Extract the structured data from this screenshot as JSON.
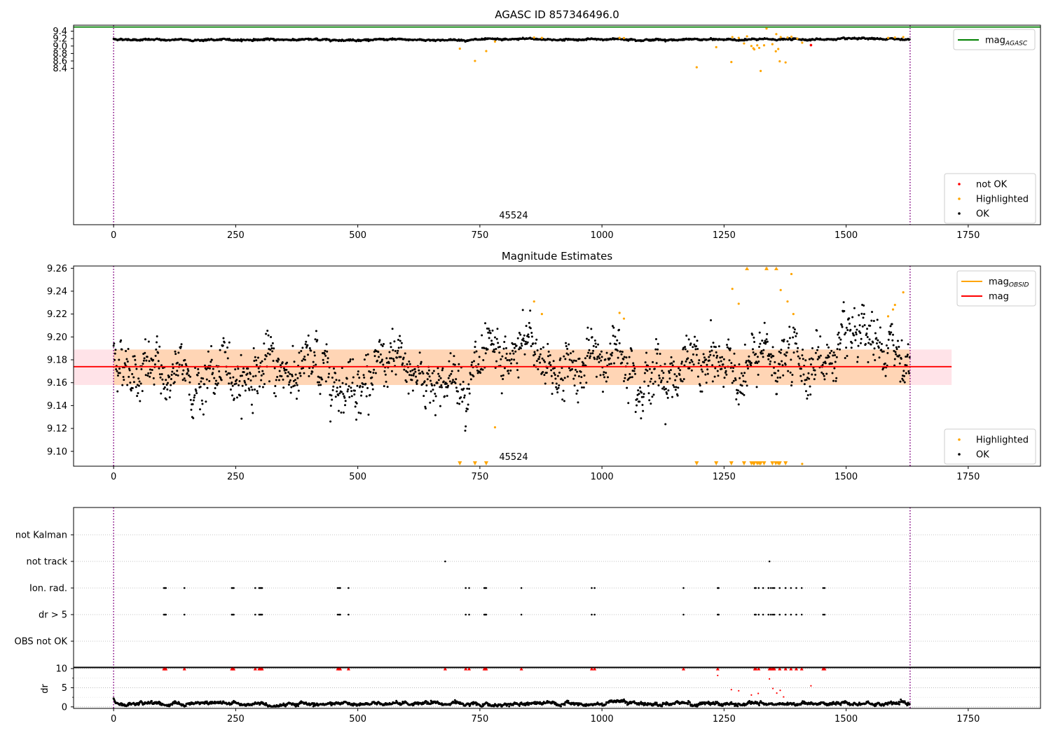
{
  "chart_data": [
    {
      "type": "scatter",
      "title": "AGASC ID 857346496.0",
      "annotation": "45524",
      "xlim": [
        -82,
        1898
      ],
      "ylim": [
        4.2,
        9.56
      ],
      "x_ticks": [
        0,
        250,
        500,
        750,
        1000,
        1250,
        1500,
        1750
      ],
      "y_ticks": [
        8.4,
        8.6,
        8.8,
        9.0,
        9.2,
        9.4
      ],
      "y_tick_labels": [
        "8.4",
        "8.6",
        "8.8",
        "9.0",
        "9.2",
        "9.4"
      ],
      "vlines": [
        0,
        1631
      ],
      "hline": {
        "name": "mag",
        "sub": "AGASC",
        "value": 9.51,
        "color": "#008000"
      },
      "legends": [
        {
          "position": "top-right",
          "entries": [
            {
              "label": "mag",
              "sub": "AGASC",
              "kind": "line",
              "color": "#008000"
            }
          ]
        },
        {
          "position": "bottom-right",
          "entries": [
            {
              "label": "not OK",
              "kind": "dot",
              "color": "#ff0000"
            },
            {
              "label": "Highlighted",
              "kind": "dot",
              "color": "#ffa500"
            },
            {
              "label": "OK",
              "kind": "dot",
              "color": "#000000"
            }
          ]
        }
      ],
      "series": [
        {
          "name": "OK",
          "color": "#000000",
          "n": 1631,
          "baseline_x": [
            0,
            100,
            200,
            300,
            400,
            500,
            600,
            700,
            750,
            800,
            850,
            900,
            1000,
            1050,
            1100,
            1200,
            1300,
            1400,
            1500,
            1631
          ],
          "baseline_y": [
            9.185,
            9.165,
            9.163,
            9.172,
            9.172,
            9.168,
            9.168,
            9.163,
            9.168,
            9.166,
            9.195,
            9.172,
            9.178,
            9.19,
            9.168,
            9.172,
            9.175,
            9.18,
            9.182,
            9.186
          ],
          "noise": 0.013
        },
        {
          "name": "Highlighted",
          "color": "#ffa500",
          "points": [
            [
              709,
              8.93
            ],
            [
              740,
              8.6
            ],
            [
              763,
              8.865
            ],
            [
              781,
              9.12
            ],
            [
              861,
              9.23
            ],
            [
              877,
              9.22
            ],
            [
              1036,
              9.22
            ],
            [
              1045,
              9.215
            ],
            [
              1194,
              8.43
            ],
            [
              1234,
              8.97
            ],
            [
              1265,
              8.57
            ],
            [
              1267,
              9.24
            ],
            [
              1280,
              9.22
            ],
            [
              1291,
              9.07
            ],
            [
              1297,
              9.26
            ],
            [
              1306,
              9.0
            ],
            [
              1310,
              8.94
            ],
            [
              1312,
              8.91
            ],
            [
              1318,
              9.02
            ],
            [
              1322,
              8.95
            ],
            [
              1325,
              8.33
            ],
            [
              1332,
              9.02
            ],
            [
              1337,
              9.47
            ],
            [
              1349,
              9.05
            ],
            [
              1356,
              8.86
            ],
            [
              1357,
              9.32
            ],
            [
              1361,
              8.92
            ],
            [
              1364,
              8.59
            ],
            [
              1366,
              9.24
            ],
            [
              1376,
              8.56
            ],
            [
              1380,
              9.23
            ],
            [
              1388,
              9.25
            ],
            [
              1400,
              9.2
            ],
            [
              1410,
              9.09
            ],
            [
              1586,
              9.22
            ],
            [
              1600,
              9.23
            ],
            [
              1617,
              9.24
            ]
          ]
        },
        {
          "name": "not OK",
          "color": "#ff0000",
          "points": [
            [
              1428,
              9.025
            ]
          ]
        }
      ]
    },
    {
      "type": "scatter",
      "title": "Magnitude Estimates",
      "annotation": "45524",
      "xlim": [
        -82,
        1898
      ],
      "ylim": [
        9.087,
        9.262
      ],
      "x_ticks": [
        0,
        250,
        500,
        750,
        1000,
        1250,
        1500,
        1750
      ],
      "y_ticks": [
        9.1,
        9.12,
        9.14,
        9.16,
        9.18,
        9.2,
        9.22,
        9.24,
        9.26
      ],
      "y_tick_labels": [
        "9.10",
        "9.12",
        "9.14",
        "9.16",
        "9.18",
        "9.20",
        "9.22",
        "9.24",
        "9.26"
      ],
      "vlines": [
        0,
        1631
      ],
      "mag": {
        "value": 9.174,
        "x_range": [
          -82,
          1716
        ],
        "band_outer": [
          9.158,
          9.189
        ],
        "band_inner": [
          9.158,
          9.189
        ],
        "inner_x_range": [
          0,
          1631
        ],
        "color": "#ff0000"
      },
      "legends": [
        {
          "position": "top-right",
          "entries": [
            {
              "label": "mag",
              "sub": "OBSID",
              "kind": "line",
              "color": "#ffa500"
            },
            {
              "label": "mag",
              "kind": "line",
              "color": "#ff0000"
            }
          ]
        },
        {
          "position": "bottom-right",
          "entries": [
            {
              "label": "Highlighted",
              "kind": "dot",
              "color": "#ffa500"
            },
            {
              "label": "OK",
              "kind": "dot",
              "color": "#000000"
            }
          ]
        }
      ],
      "series": [
        {
          "name": "OK",
          "color": "#000000",
          "n": 1631,
          "noise": 0.013
        },
        {
          "name": "Highlighted",
          "color": "#ffa500",
          "points": [
            [
              781,
              9.121
            ],
            [
              861,
              9.231
            ],
            [
              877,
              9.22
            ],
            [
              1036,
              9.221
            ],
            [
              1045,
              9.216
            ],
            [
              1267,
              9.242
            ],
            [
              1280,
              9.229
            ],
            [
              1337,
              9.26
            ],
            [
              1366,
              9.241
            ],
            [
              1380,
              9.231
            ],
            [
              1388,
              9.255
            ],
            [
              1392,
              9.22
            ],
            [
              1410,
              9.089
            ],
            [
              1586,
              9.218
            ],
            [
              1596,
              9.224
            ],
            [
              1600,
              9.228
            ],
            [
              1617,
              9.239
            ]
          ]
        },
        {
          "name": "Highlighted (out of range)",
          "color": "#ffa500",
          "marker": "triangle",
          "points": [
            [
              709,
              9.09
            ],
            [
              740,
              9.09
            ],
            [
              763,
              9.09
            ],
            [
              1194,
              9.09
            ],
            [
              1234,
              9.09
            ],
            [
              1265,
              9.09
            ],
            [
              1291,
              9.09
            ],
            [
              1306,
              9.09
            ],
            [
              1310,
              9.09
            ],
            [
              1312,
              9.09
            ],
            [
              1318,
              9.09
            ],
            [
              1322,
              9.09
            ],
            [
              1325,
              9.09
            ],
            [
              1332,
              9.09
            ],
            [
              1349,
              9.09
            ],
            [
              1356,
              9.09
            ],
            [
              1361,
              9.09
            ],
            [
              1364,
              9.09
            ],
            [
              1376,
              9.09
            ],
            [
              1297,
              9.26
            ],
            [
              1337,
              9.26
            ],
            [
              1357,
              9.26
            ]
          ]
        }
      ]
    },
    {
      "type": "scatter",
      "xlim": [
        -82,
        1898
      ],
      "categories": [
        "not Kalman",
        "not track",
        "Ion. rad.",
        "dr > 5",
        "OBS not OK"
      ],
      "x_ticks": [
        0,
        250,
        500,
        750,
        1000,
        1250,
        1500,
        1750
      ],
      "vlines": [
        0,
        1631
      ],
      "flags": {
        "not track": [
          679,
          1343
        ],
        "Ion. rad.": [
          103,
          105,
          107,
          145,
          242,
          244,
          246,
          290,
          298,
          300,
          302,
          304,
          459,
          462,
          464,
          481,
          721,
          728,
          759,
          761,
          763,
          835,
          979,
          985,
          1167,
          1237,
          1239,
          1313,
          1315,
          1321,
          1330,
          1341,
          1346,
          1350,
          1353,
          1364,
          1376,
          1387,
          1398,
          1409,
          1453,
          1456
        ],
        "dr > 5": [
          103,
          105,
          107,
          145,
          242,
          244,
          246,
          290,
          298,
          300,
          302,
          304,
          459,
          462,
          464,
          481,
          721,
          728,
          759,
          761,
          763,
          835,
          979,
          985,
          1167,
          1237,
          1239,
          1313,
          1315,
          1321,
          1330,
          1341,
          1346,
          1350,
          1353,
          1364,
          1376,
          1387,
          1398,
          1409,
          1453,
          1456
        ]
      }
    },
    {
      "type": "scatter",
      "ylabel": "dr",
      "xlim": [
        -82,
        1898
      ],
      "ylim": [
        -0.4,
        10.2
      ],
      "y_ticks": [
        0,
        5,
        10
      ],
      "y_tick_labels": [
        "0",
        "5",
        "10"
      ],
      "x_ticks": [
        0,
        250,
        500,
        750,
        1000,
        1250,
        1500,
        1750
      ],
      "x_tick_labels": [
        "0",
        "250",
        "500",
        "750",
        "1000",
        "1250",
        "1500",
        "1750"
      ],
      "vlines": [
        0,
        1631
      ],
      "series": [
        {
          "name": "OK",
          "color": "#000000",
          "n": 1631,
          "typical": 0.8
        },
        {
          "name": "clipped",
          "color": "#ff0000",
          "marker": "triangle",
          "value": 10,
          "x": [
            103,
            105,
            107,
            145,
            242,
            244,
            246,
            290,
            298,
            300,
            302,
            304,
            459,
            462,
            464,
            481,
            679,
            721,
            728,
            759,
            761,
            763,
            835,
            979,
            985,
            1167,
            1237,
            1313,
            1315,
            1321,
            1343,
            1346,
            1350,
            1353,
            1364,
            1376,
            1387,
            1398,
            1409,
            1453,
            1456
          ]
        },
        {
          "name": "not OK",
          "color": "#ff0000",
          "points": [
            [
              1237,
              8.2
            ],
            [
              1265,
              4.5
            ],
            [
              1280,
              4.2
            ],
            [
              1306,
              3.1
            ],
            [
              1320,
              3.5
            ],
            [
              1343,
              7.3
            ],
            [
              1350,
              4.8
            ],
            [
              1358,
              3.6
            ],
            [
              1365,
              4.3
            ],
            [
              1372,
              2.6
            ],
            [
              1428,
              5.5
            ]
          ]
        }
      ]
    }
  ]
}
